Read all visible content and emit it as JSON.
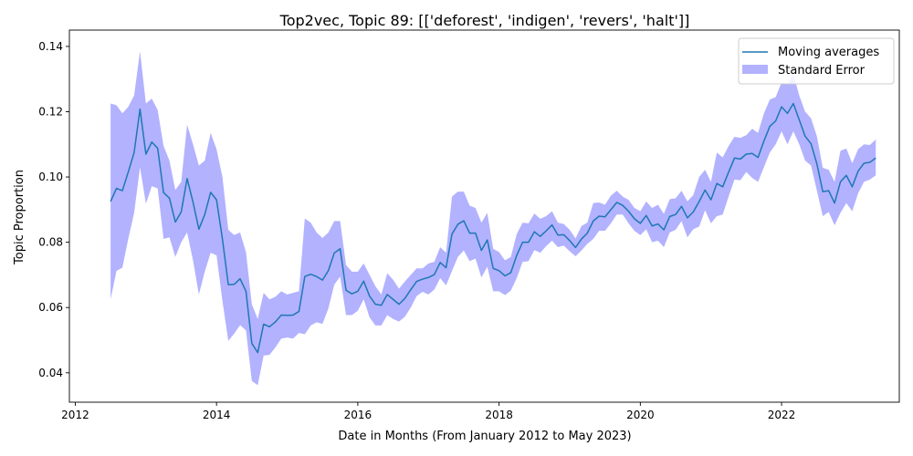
{
  "chart_data": {
    "type": "line",
    "title": "Top2vec, Topic 89: [['deforest', 'indigen', 'revers', 'halt']]",
    "xlabel": "Date in Months (From January 2012 to May 2023)",
    "ylabel": "Topic Proportion",
    "xlim": [
      "2011-12",
      "2023-09"
    ],
    "ylim": [
      0.031,
      0.145
    ],
    "x_ticks": [
      "2012",
      "2014",
      "2016",
      "2018",
      "2020",
      "2022"
    ],
    "y_ticks": [
      "0.04",
      "0.06",
      "0.08",
      "0.10",
      "0.12",
      "0.14"
    ],
    "grid": false,
    "legend_position": "top-right",
    "colors": {
      "line": "#1f77b4",
      "band": "#0000ff",
      "band_opacity": 0.3
    },
    "series": [
      {
        "name": "Moving averages",
        "x": [
          "2012-07",
          "2012-08",
          "2012-09",
          "2012-10",
          "2012-11",
          "2012-12",
          "2013-01",
          "2013-02",
          "2013-03",
          "2013-04",
          "2013-05",
          "2013-06",
          "2013-07",
          "2013-08",
          "2013-09",
          "2013-10",
          "2013-11",
          "2013-12",
          "2014-01",
          "2014-02",
          "2014-03",
          "2014-04",
          "2014-05",
          "2014-06",
          "2014-07",
          "2014-08",
          "2014-09",
          "2014-10",
          "2014-11",
          "2014-12",
          "2015-01",
          "2015-02",
          "2015-03",
          "2015-04",
          "2015-05",
          "2015-06",
          "2015-07",
          "2015-08",
          "2015-09",
          "2015-10",
          "2015-11",
          "2015-12",
          "2016-01",
          "2016-02",
          "2016-03",
          "2016-04",
          "2016-05",
          "2016-06",
          "2016-07",
          "2016-08",
          "2016-09",
          "2016-10",
          "2016-11",
          "2016-12",
          "2017-01",
          "2017-02",
          "2017-03",
          "2017-04",
          "2017-05",
          "2017-06",
          "2017-07",
          "2017-08",
          "2017-09",
          "2017-10",
          "2017-11",
          "2017-12",
          "2018-01",
          "2018-02",
          "2018-03",
          "2018-04",
          "2018-05",
          "2018-06",
          "2018-07",
          "2018-08",
          "2018-09",
          "2018-10",
          "2018-11",
          "2018-12",
          "2019-01",
          "2019-02",
          "2019-03",
          "2019-04",
          "2019-05",
          "2019-06",
          "2019-07",
          "2019-08",
          "2019-09",
          "2019-10",
          "2019-11",
          "2019-12",
          "2020-01",
          "2020-02",
          "2020-03",
          "2020-04",
          "2020-05",
          "2020-06",
          "2020-07",
          "2020-08",
          "2020-09",
          "2020-10",
          "2020-11",
          "2020-12",
          "2021-01",
          "2021-02",
          "2021-03",
          "2021-04",
          "2021-05",
          "2021-06",
          "2021-07",
          "2021-08",
          "2021-09",
          "2021-10",
          "2021-11",
          "2021-12",
          "2022-01",
          "2022-02",
          "2022-03",
          "2022-04",
          "2022-05",
          "2022-06",
          "2022-07",
          "2022-08",
          "2022-09",
          "2022-10",
          "2022-11",
          "2022-12",
          "2023-01",
          "2023-02",
          "2023-03",
          "2023-04",
          "2023-05"
        ],
        "values": [
          0.0925,
          0.0965,
          0.0958,
          0.1015,
          0.1075,
          0.1208,
          0.107,
          0.1107,
          0.1088,
          0.0952,
          0.0935,
          0.0862,
          0.0893,
          0.0995,
          0.0923,
          0.084,
          0.0885,
          0.0953,
          0.093,
          0.081,
          0.067,
          0.0671,
          0.0688,
          0.065,
          0.049,
          0.0462,
          0.0549,
          0.0541,
          0.0556,
          0.0577,
          0.0576,
          0.0577,
          0.0588,
          0.0695,
          0.0702,
          0.0695,
          0.0684,
          0.0713,
          0.0767,
          0.078,
          0.0653,
          0.0642,
          0.065,
          0.0681,
          0.0635,
          0.061,
          0.0607,
          0.064,
          0.0625,
          0.061,
          0.0628,
          0.0655,
          0.068,
          0.0687,
          0.0692,
          0.0701,
          0.0738,
          0.0722,
          0.0825,
          0.0855,
          0.0866,
          0.0828,
          0.0828,
          0.0775,
          0.0807,
          0.072,
          0.0713,
          0.0697,
          0.0707,
          0.076,
          0.08,
          0.08,
          0.0832,
          0.0818,
          0.0835,
          0.0853,
          0.0822,
          0.0823,
          0.0805,
          0.0784,
          0.081,
          0.0828,
          0.0865,
          0.088,
          0.0878,
          0.09,
          0.0922,
          0.0913,
          0.0895,
          0.0872,
          0.0858,
          0.0882,
          0.085,
          0.0856,
          0.0838,
          0.0879,
          0.0885,
          0.091,
          0.0875,
          0.0893,
          0.0925,
          0.096,
          0.093,
          0.098,
          0.097,
          0.1015,
          0.1058,
          0.1055,
          0.107,
          0.1072,
          0.106,
          0.111,
          0.1155,
          0.1172,
          0.1215,
          0.1195,
          0.1225,
          0.1175,
          0.1125,
          0.1102,
          0.104,
          0.0955,
          0.0958,
          0.092,
          0.0985,
          0.1005,
          0.097,
          0.1018,
          0.1042,
          0.1045,
          0.1058
        ]
      }
    ],
    "band": {
      "name": "Standard Error",
      "upper": [
        0.1225,
        0.122,
        0.1195,
        0.1215,
        0.125,
        0.1385,
        0.1225,
        0.124,
        0.1205,
        0.1095,
        0.105,
        0.096,
        0.0985,
        0.116,
        0.11,
        0.1035,
        0.105,
        0.1135,
        0.1085,
        0.1,
        0.0838,
        0.0822,
        0.083,
        0.077,
        0.061,
        0.0565,
        0.0645,
        0.0625,
        0.0633,
        0.065,
        0.064,
        0.0645,
        0.065,
        0.0873,
        0.086,
        0.083,
        0.0813,
        0.083,
        0.0865,
        0.0865,
        0.073,
        0.071,
        0.071,
        0.0735,
        0.07,
        0.0665,
        0.064,
        0.0705,
        0.0685,
        0.0658,
        0.068,
        0.07,
        0.072,
        0.072,
        0.0735,
        0.074,
        0.0785,
        0.0768,
        0.094,
        0.0955,
        0.0955,
        0.0912,
        0.0905,
        0.086,
        0.089,
        0.078,
        0.077,
        0.0745,
        0.0755,
        0.0825,
        0.086,
        0.0858,
        0.0888,
        0.0872,
        0.088,
        0.0895,
        0.086,
        0.0856,
        0.0838,
        0.0812,
        0.085,
        0.086,
        0.092,
        0.0922,
        0.0915,
        0.0943,
        0.0958,
        0.094,
        0.093,
        0.0905,
        0.0895,
        0.0925,
        0.0905,
        0.0915,
        0.0887,
        0.0932,
        0.0935,
        0.0958,
        0.0925,
        0.0945,
        0.1,
        0.1022,
        0.0985,
        0.1075,
        0.106,
        0.1095,
        0.1123,
        0.112,
        0.1128,
        0.1148,
        0.1135,
        0.1195,
        0.1237,
        0.1245,
        0.129,
        0.1285,
        0.1315,
        0.125,
        0.12,
        0.118,
        0.1125,
        0.1028,
        0.1022,
        0.0985,
        0.108,
        0.1087,
        0.1042,
        0.1085,
        0.11,
        0.1098,
        0.1115
      ],
      "lower": [
        0.0625,
        0.0712,
        0.0722,
        0.081,
        0.089,
        0.103,
        0.0918,
        0.0972,
        0.0965,
        0.081,
        0.0815,
        0.0755,
        0.08,
        0.083,
        0.0745,
        0.064,
        0.071,
        0.0768,
        0.076,
        0.062,
        0.0498,
        0.052,
        0.0546,
        0.053,
        0.0375,
        0.0362,
        0.0453,
        0.0455,
        0.0478,
        0.0505,
        0.0508,
        0.0505,
        0.0522,
        0.0518,
        0.0545,
        0.0555,
        0.055,
        0.0597,
        0.067,
        0.0695,
        0.0577,
        0.0577,
        0.059,
        0.0625,
        0.057,
        0.0545,
        0.0545,
        0.0577,
        0.0565,
        0.0557,
        0.0572,
        0.06,
        0.0635,
        0.0648,
        0.064,
        0.0655,
        0.069,
        0.0668,
        0.0712,
        0.0755,
        0.0775,
        0.0742,
        0.075,
        0.0692,
        0.0725,
        0.065,
        0.065,
        0.0638,
        0.0652,
        0.069,
        0.074,
        0.0742,
        0.0776,
        0.0768,
        0.0788,
        0.0805,
        0.0785,
        0.079,
        0.0772,
        0.0757,
        0.0775,
        0.0795,
        0.081,
        0.0835,
        0.0835,
        0.0858,
        0.0885,
        0.0885,
        0.0858,
        0.0835,
        0.0822,
        0.084,
        0.08,
        0.0805,
        0.0785,
        0.083,
        0.0838,
        0.0865,
        0.0815,
        0.084,
        0.0848,
        0.0898,
        0.0858,
        0.088,
        0.0885,
        0.094,
        0.0992,
        0.099,
        0.1015,
        0.0997,
        0.0985,
        0.103,
        0.1075,
        0.11,
        0.114,
        0.11,
        0.114,
        0.11,
        0.105,
        0.1035,
        0.0958,
        0.088,
        0.0893,
        0.0852,
        0.089,
        0.092,
        0.0895,
        0.095,
        0.0985,
        0.0992,
        0.1005
      ]
    }
  }
}
